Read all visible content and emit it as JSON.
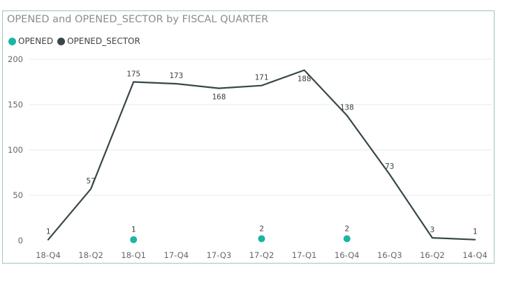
{
  "colors": {
    "opened": "#1ab5a3",
    "opened_sector": "#374649",
    "grid": "#e9e9e9",
    "frame": "#9fc5bf"
  },
  "chart_data": {
    "type": "line",
    "title": "OPENED and OPENED_SECTOR by FISCAL QUARTER",
    "xlabel": "",
    "ylabel": "",
    "ylim": [
      0,
      200
    ],
    "yticks": [
      0,
      50,
      100,
      150,
      200
    ],
    "grid": true,
    "legend_position": "top-left",
    "categories": [
      "18-Q4",
      "18-Q2",
      "18-Q1",
      "17-Q4",
      "17-Q3",
      "17-Q2",
      "17-Q1",
      "16-Q4",
      "16-Q3",
      "16-Q2",
      "14-Q4"
    ],
    "series": [
      {
        "name": "OPENED",
        "style": "markers",
        "color": "#1ab5a3",
        "values": [
          null,
          null,
          1,
          null,
          null,
          2,
          null,
          2,
          null,
          null,
          null
        ]
      },
      {
        "name": "OPENED_SECTOR",
        "style": "line",
        "color": "#374649",
        "values": [
          1,
          57,
          175,
          173,
          168,
          171,
          188,
          138,
          73,
          3,
          1
        ]
      }
    ]
  }
}
